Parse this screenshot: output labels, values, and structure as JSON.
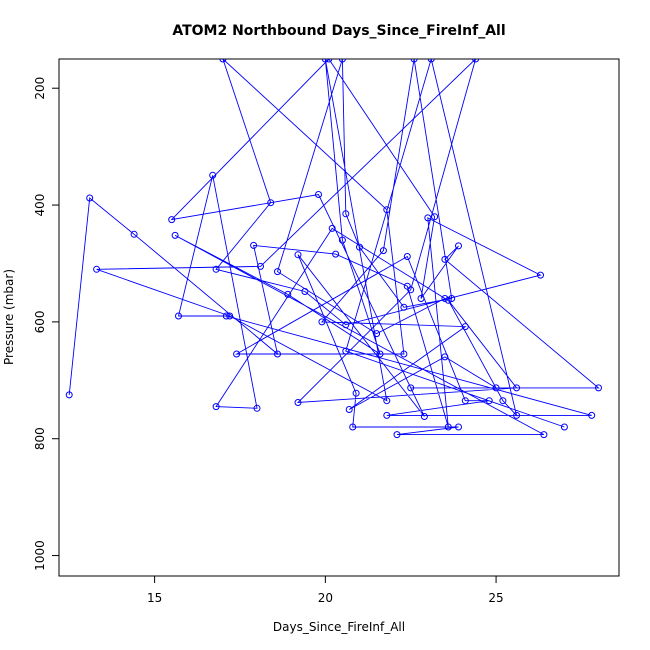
{
  "chart_data": {
    "type": "line",
    "title": "ATOM2 Northbound Days_Since_FireInf_All",
    "xlabel": "Days_Since_FireInf_All",
    "ylabel": "Pressure (mbar)",
    "xlim": [
      12.2,
      28.6
    ],
    "ylim": [
      1035,
      150
    ],
    "y_reversed": true,
    "xticks": [
      15,
      20,
      25
    ],
    "yticks": [
      200,
      400,
      600,
      800,
      1000
    ],
    "grid": false,
    "legend": "none",
    "color": "#0000ff",
    "series": [
      {
        "values": [
          [
            12.5,
            725
          ],
          [
            13.1,
            388
          ],
          [
            14.4,
            450
          ],
          [
            18.6,
            655
          ],
          [
            17.9,
            469
          ],
          [
            20.3,
            484
          ],
          [
            22.4,
            539
          ],
          [
            23.6,
            780
          ],
          [
            23.0,
            422
          ],
          [
            26.3,
            520
          ],
          [
            20.6,
            605
          ],
          [
            19.4,
            548
          ],
          [
            16.8,
            510
          ],
          [
            18.4,
            396
          ],
          [
            17.0,
            150
          ],
          [
            21.8,
            408
          ],
          [
            22.3,
            655
          ],
          [
            17.4,
            655
          ],
          [
            22.4,
            488
          ],
          [
            24.1,
            735
          ],
          [
            24.8,
            735
          ],
          [
            21.8,
            760
          ],
          [
            27.8,
            760
          ],
          [
            17.1,
            590
          ],
          [
            15.7,
            590
          ],
          [
            16.7,
            349
          ],
          [
            18.0,
            748
          ],
          [
            16.8,
            745
          ],
          [
            20.2,
            440
          ],
          [
            23.5,
            560
          ],
          [
            21.5,
            620
          ],
          [
            18.6,
            514
          ],
          [
            20.5,
            150
          ],
          [
            20.6,
            415
          ],
          [
            21.0,
            472
          ],
          [
            22.3,
            575
          ],
          [
            23.7,
            560
          ],
          [
            22.6,
            150
          ],
          [
            21.7,
            478
          ],
          [
            19.9,
            600
          ],
          [
            24.1,
            608
          ],
          [
            20.7,
            750
          ],
          [
            23.5,
            660
          ],
          [
            25.0,
            713
          ],
          [
            22.5,
            713
          ],
          [
            28.0,
            713
          ],
          [
            23.5,
            493
          ],
          [
            23.9,
            470
          ],
          [
            22.8,
            560
          ],
          [
            23.2,
            420
          ],
          [
            20.1,
            150
          ],
          [
            15.5,
            425
          ],
          [
            19.8,
            382
          ],
          [
            22.9,
            762
          ],
          [
            19.2,
            485
          ],
          [
            20.9,
            722
          ],
          [
            20.8,
            780
          ],
          [
            23.9,
            780
          ],
          [
            22.1,
            793
          ],
          [
            26.4,
            793
          ],
          [
            15.6,
            452
          ],
          [
            18.9,
            553
          ],
          [
            21.6,
            655
          ],
          [
            20.5,
            460
          ],
          [
            20.0,
            150
          ],
          [
            21.8,
            735
          ],
          [
            17.2,
            590
          ],
          [
            13.3,
            510
          ],
          [
            18.1,
            505
          ],
          [
            24.4,
            150
          ],
          [
            22.5,
            545
          ],
          [
            19.2,
            738
          ],
          [
            25.6,
            713
          ],
          [
            23.6,
            563
          ],
          [
            25.2,
            735
          ],
          [
            25.6,
            760
          ],
          [
            23.1,
            150
          ],
          [
            20.6,
            650
          ],
          [
            27.0,
            780
          ]
        ]
      }
    ]
  }
}
